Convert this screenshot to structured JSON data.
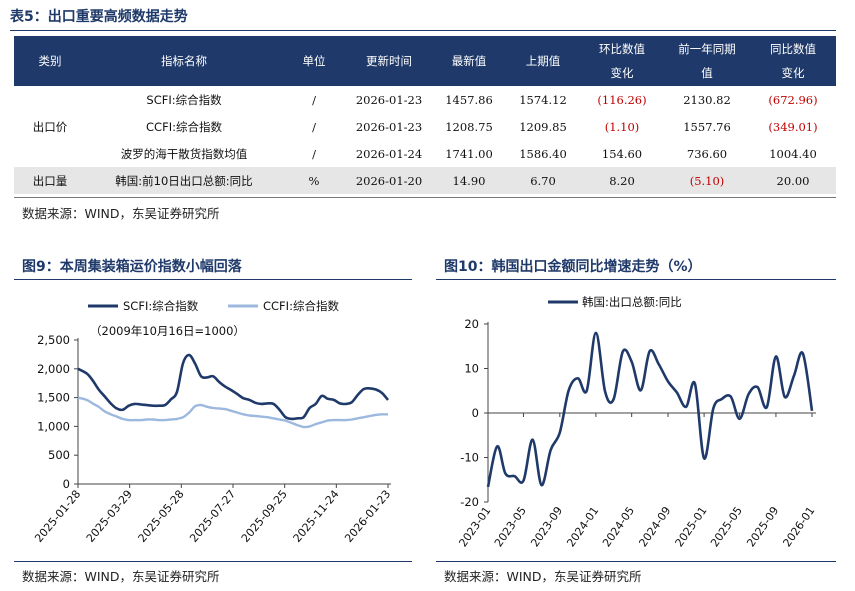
{
  "table": {
    "title": "表5：出口重要高频数据走势",
    "headers": [
      "类别",
      "指标名称",
      "单位",
      "更新时间",
      "最新值",
      "上期值",
      "环比数值变化",
      "前一年同期值",
      "同比数值变化"
    ],
    "headers_lines": [
      [
        "类别"
      ],
      [
        "指标名称"
      ],
      [
        "单位"
      ],
      [
        "更新时间"
      ],
      [
        "最新值"
      ],
      [
        "上期值"
      ],
      [
        "环比数值",
        "变化"
      ],
      [
        "前一年同期",
        "值"
      ],
      [
        "同比数值",
        "变化"
      ]
    ],
    "rows": [
      {
        "category": "出口价",
        "name": "SCFI:综合指数",
        "unit": "/",
        "date": "2026-01-23",
        "latest": "1457.86",
        "prev": "1574.12",
        "mom": "(116.26)",
        "mom_neg": true,
        "yago": "2130.82",
        "yoy": "(672.96)",
        "yoy_neg": true
      },
      {
        "category": "",
        "name": "CCFI:综合指数",
        "unit": "/",
        "date": "2026-01-23",
        "latest": "1208.75",
        "prev": "1209.85",
        "mom": "(1.10)",
        "mom_neg": true,
        "yago": "1557.76",
        "yoy": "(349.01)",
        "yoy_neg": true
      },
      {
        "category": "",
        "name": "波罗的海干散货指数均值",
        "unit": "/",
        "date": "2026-01-24",
        "latest": "1741.00",
        "prev": "1586.40",
        "mom": "154.60",
        "mom_neg": false,
        "yago": "736.60",
        "yoy": "1004.40",
        "yoy_neg": false
      },
      {
        "category": "出口量",
        "name": "韩国:前10日出口总额:同比",
        "unit": "%",
        "date": "2026-01-20",
        "latest": "14.90",
        "prev": "6.70",
        "mom": "8.20",
        "mom_neg": false,
        "yago": "(5.10)",
        "yago_neg": true,
        "yoy": "20.00",
        "yoy_neg": false
      }
    ],
    "source": "数据来源：WIND，东吴证券研究所"
  },
  "figure9": {
    "title": "图9：本周集装箱运价指数小幅回落",
    "source": "数据来源：WIND，东吴证券研究所"
  },
  "figure10": {
    "title": "图10：韩国出口金额同比增速走势（%）",
    "source": "数据来源：WIND，东吴证券研究所"
  },
  "colors": {
    "navy": "#1f3a6a",
    "light_blue": "#9db8de",
    "negative_red": "#c00000"
  },
  "chart_data": [
    {
      "type": "line",
      "title": "",
      "annotation": "（2009年10月16日=1000）",
      "x_ticks": [
        "2025-01-28",
        "2025-03-29",
        "2025-05-28",
        "2025-07-27",
        "2025-09-25",
        "2025-11-24",
        "2026-01-23"
      ],
      "y_ticks": [
        "0",
        "500",
        "1,000",
        "1,500",
        "2,000",
        "2,500"
      ],
      "ylim": [
        0,
        2500
      ],
      "legend": "top",
      "x_range": [
        "2025-01-28",
        "2026-01-23"
      ],
      "series": [
        {
          "name": "SCFI:综合指数",
          "color": "#1f3a6a",
          "x": [
            "2025-01-28",
            "2025-02-07",
            "2025-02-14",
            "2025-02-21",
            "2025-02-28",
            "2025-03-07",
            "2025-03-14",
            "2025-03-21",
            "2025-03-28",
            "2025-04-04",
            "2025-04-11",
            "2025-04-18",
            "2025-04-25",
            "2025-05-02",
            "2025-05-09",
            "2025-05-16",
            "2025-05-23",
            "2025-05-30",
            "2025-06-06",
            "2025-06-13",
            "2025-06-20",
            "2025-06-27",
            "2025-07-04",
            "2025-07-11",
            "2025-07-18",
            "2025-07-25",
            "2025-08-01",
            "2025-08-08",
            "2025-08-15",
            "2025-08-22",
            "2025-08-29",
            "2025-09-05",
            "2025-09-12",
            "2025-09-19",
            "2025-09-26",
            "2025-10-03",
            "2025-10-10",
            "2025-10-17",
            "2025-10-24",
            "2025-10-31",
            "2025-11-07",
            "2025-11-14",
            "2025-11-21",
            "2025-11-28",
            "2025-12-05",
            "2025-12-12",
            "2025-12-19",
            "2025-12-26",
            "2026-01-02",
            "2026-01-09",
            "2026-01-16",
            "2026-01-23"
          ],
          "y": [
            2000,
            1920,
            1800,
            1640,
            1520,
            1400,
            1310,
            1290,
            1360,
            1390,
            1380,
            1370,
            1360,
            1360,
            1370,
            1470,
            1600,
            2100,
            2240,
            2090,
            1870,
            1850,
            1870,
            1770,
            1690,
            1630,
            1560,
            1490,
            1460,
            1410,
            1390,
            1400,
            1390,
            1290,
            1160,
            1130,
            1140,
            1160,
            1320,
            1390,
            1530,
            1480,
            1460,
            1400,
            1390,
            1420,
            1550,
            1650,
            1660,
            1640,
            1580,
            1458
          ]
        },
        {
          "name": "CCFI:综合指数",
          "color": "#9db8de",
          "x": [
            "2025-01-28",
            "2025-02-07",
            "2025-02-14",
            "2025-02-21",
            "2025-02-28",
            "2025-03-07",
            "2025-03-14",
            "2025-03-21",
            "2025-03-28",
            "2025-04-04",
            "2025-04-11",
            "2025-04-18",
            "2025-04-25",
            "2025-05-02",
            "2025-05-09",
            "2025-05-16",
            "2025-05-23",
            "2025-05-30",
            "2025-06-06",
            "2025-06-13",
            "2025-06-20",
            "2025-06-27",
            "2025-07-04",
            "2025-07-11",
            "2025-07-18",
            "2025-07-25",
            "2025-08-01",
            "2025-08-08",
            "2025-08-15",
            "2025-08-22",
            "2025-08-29",
            "2025-09-05",
            "2025-09-12",
            "2025-09-19",
            "2025-09-26",
            "2025-10-03",
            "2025-10-10",
            "2025-10-17",
            "2025-10-24",
            "2025-10-31",
            "2025-11-07",
            "2025-11-14",
            "2025-11-21",
            "2025-11-28",
            "2025-12-05",
            "2025-12-12",
            "2025-12-19",
            "2025-12-26",
            "2026-01-02",
            "2026-01-09",
            "2026-01-16",
            "2026-01-23"
          ],
          "y": [
            1500,
            1460,
            1400,
            1340,
            1260,
            1210,
            1170,
            1130,
            1110,
            1110,
            1110,
            1120,
            1120,
            1110,
            1110,
            1120,
            1130,
            1160,
            1240,
            1350,
            1370,
            1340,
            1320,
            1310,
            1300,
            1270,
            1240,
            1210,
            1190,
            1180,
            1170,
            1160,
            1140,
            1120,
            1100,
            1060,
            1020,
            990,
            1000,
            1040,
            1070,
            1100,
            1110,
            1110,
            1110,
            1120,
            1140,
            1160,
            1180,
            1200,
            1210,
            1209
          ]
        }
      ]
    },
    {
      "type": "line",
      "title": "",
      "x_ticks": [
        "2023-01",
        "2023-05",
        "2023-09",
        "2024-01",
        "2024-05",
        "2024-09",
        "2025-01",
        "2025-05",
        "2025-09",
        "2026-01"
      ],
      "y_ticks": [
        "-20",
        "-10",
        "0",
        "10",
        "20"
      ],
      "ylim": [
        -20,
        20
      ],
      "legend": "top-left",
      "series": [
        {
          "name": "韩国:出口总额:同比",
          "color": "#1f3a6a",
          "x": [
            "2023-01",
            "2023-02",
            "2023-03",
            "2023-04",
            "2023-05",
            "2023-06",
            "2023-07",
            "2023-08",
            "2023-09",
            "2023-10",
            "2023-11",
            "2023-12",
            "2024-01",
            "2024-02",
            "2024-03",
            "2024-04",
            "2024-05",
            "2024-06",
            "2024-07",
            "2024-08",
            "2024-09",
            "2024-10",
            "2024-11",
            "2024-12",
            "2025-01",
            "2025-02",
            "2025-03",
            "2025-04",
            "2025-05",
            "2025-06",
            "2025-07",
            "2025-08",
            "2025-09",
            "2025-10",
            "2025-11",
            "2025-12",
            "2026-01"
          ],
          "y": [
            -16.6,
            -7.5,
            -13.6,
            -14.2,
            -15.2,
            -6.0,
            -16.2,
            -8.3,
            -4.4,
            5.1,
            7.8,
            5.0,
            18.0,
            4.8,
            3.1,
            13.8,
            11.5,
            5.1,
            13.9,
            10.9,
            7.1,
            4.6,
            1.4,
            6.6,
            -10.2,
            1.0,
            3.1,
            3.7,
            -1.3,
            4.3,
            5.8,
            1.3,
            12.7,
            3.6,
            8.4,
            13.4,
            0.5
          ]
        }
      ]
    }
  ]
}
